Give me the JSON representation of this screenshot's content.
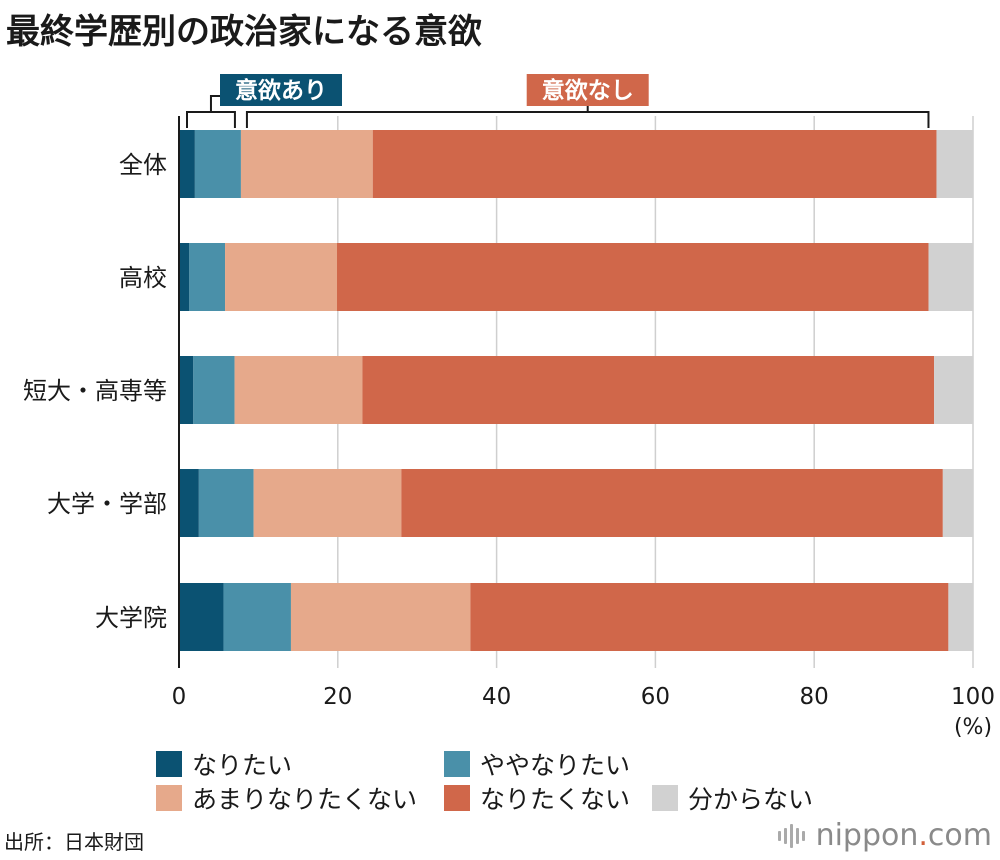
{
  "title": "最終学歴別の政治家になる意欲",
  "source": "出所：日本財団",
  "logo": {
    "prefix": "nippon",
    "dot": ".",
    "suffix": "com"
  },
  "brackets": {
    "yes_label": "意欲あり",
    "no_label": "意欲なし"
  },
  "colors": {
    "want": "#0b5272",
    "somewhat_want": "#4a90a9",
    "rather_not": "#e6a98b",
    "not_want": "#d0674a",
    "dont_know": "#d1d1d1",
    "yes_tag": "#0b5272",
    "no_tag": "#d0674a"
  },
  "chart_data": {
    "type": "bar",
    "orientation": "horizontal",
    "stacked": true,
    "categories": [
      "全体",
      "高校",
      "短大・高専等",
      "大学・学部",
      "大学院"
    ],
    "series": [
      {
        "name": "なりたい",
        "values": [
          2.0,
          1.3,
          1.8,
          2.5,
          5.6
        ]
      },
      {
        "name": "ややなりたい",
        "values": [
          5.8,
          4.5,
          5.2,
          6.9,
          8.5
        ]
      },
      {
        "name": "あまりなりたくない",
        "values": [
          16.6,
          14.1,
          16.1,
          18.6,
          22.6
        ]
      },
      {
        "name": "なりたくない",
        "values": [
          71.0,
          74.5,
          72.0,
          68.2,
          60.2
        ]
      },
      {
        "name": "分からない",
        "values": [
          4.6,
          5.6,
          4.9,
          3.8,
          3.1
        ]
      }
    ],
    "xlim": [
      0,
      100
    ],
    "xticks": [
      0,
      20,
      40,
      60,
      80,
      100
    ],
    "x_unit": "(%)",
    "grid": true
  }
}
